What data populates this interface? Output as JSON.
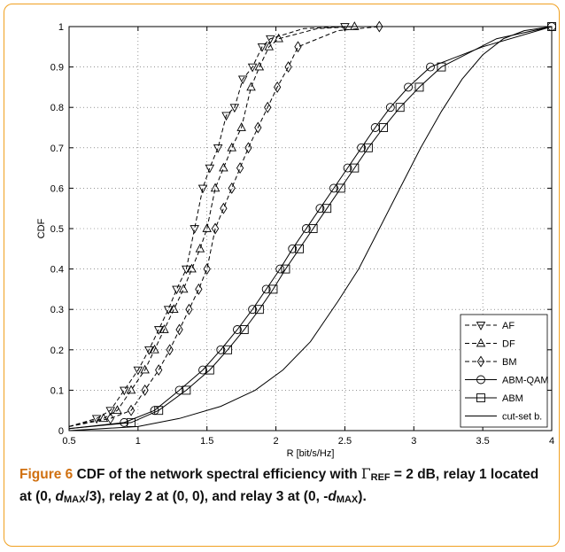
{
  "caption": {
    "lead": "Figure 6",
    "p1": " CDF of the network spectral efficiency with ",
    "gamma": "Γ",
    "gamma_sub": "REF",
    "p2": " = 2 dB, relay 1 located at (0, ",
    "d1": "d",
    "d1_sub": "MAX",
    "p3": "/3), relay 2 at (0, 0), and relay 3 at (0, -",
    "d2": "d",
    "d2_sub": "MAX",
    "p4": ")."
  },
  "chart_data": {
    "type": "line",
    "xlabel": "R [bit/s/Hz]",
    "ylabel": "CDF",
    "xlim": [
      0.5,
      4
    ],
    "ylim": [
      0,
      1
    ],
    "xticks": [
      "0.5",
      "1",
      "1.5",
      "2",
      "2.5",
      "3",
      "3.5",
      "4"
    ],
    "yticks": [
      "0",
      "0.1",
      "0.2",
      "0.3",
      "0.4",
      "0.5",
      "0.6",
      "0.7",
      "0.8",
      "0.9",
      "1"
    ],
    "grid": true,
    "legend_position": "bottom-right",
    "series": [
      {
        "name": "AF",
        "style": "dashed",
        "marker": "triangle-down",
        "x": [
          0.5,
          0.7,
          0.8,
          0.9,
          1.0,
          1.08,
          1.15,
          1.22,
          1.28,
          1.35,
          1.41,
          1.47,
          1.52,
          1.58,
          1.64,
          1.7,
          1.76,
          1.83,
          1.9,
          1.96,
          2.2,
          2.5
        ],
        "y": [
          0.01,
          0.03,
          0.05,
          0.1,
          0.15,
          0.2,
          0.25,
          0.3,
          0.35,
          0.4,
          0.5,
          0.6,
          0.65,
          0.7,
          0.78,
          0.8,
          0.87,
          0.9,
          0.95,
          0.97,
          0.995,
          1.0
        ]
      },
      {
        "name": "DF",
        "style": "dashed",
        "marker": "triangle-up",
        "x": [
          0.5,
          0.75,
          0.85,
          0.95,
          1.05,
          1.12,
          1.19,
          1.26,
          1.33,
          1.39,
          1.45,
          1.5,
          1.56,
          1.62,
          1.68,
          1.75,
          1.82,
          1.88,
          1.95,
          2.02,
          2.3,
          2.57
        ],
        "y": [
          0.01,
          0.03,
          0.05,
          0.1,
          0.15,
          0.2,
          0.25,
          0.3,
          0.35,
          0.4,
          0.45,
          0.5,
          0.6,
          0.65,
          0.7,
          0.75,
          0.85,
          0.9,
          0.95,
          0.97,
          0.995,
          1.0
        ]
      },
      {
        "name": "BM",
        "style": "dashed",
        "marker": "diamond",
        "x": [
          0.5,
          0.8,
          0.95,
          1.05,
          1.15,
          1.23,
          1.3,
          1.37,
          1.44,
          1.5,
          1.56,
          1.62,
          1.68,
          1.74,
          1.8,
          1.87,
          1.94,
          2.01,
          2.09,
          2.16,
          2.45,
          2.75
        ],
        "y": [
          0.01,
          0.03,
          0.05,
          0.1,
          0.15,
          0.2,
          0.25,
          0.3,
          0.35,
          0.4,
          0.5,
          0.55,
          0.6,
          0.65,
          0.7,
          0.75,
          0.8,
          0.85,
          0.9,
          0.95,
          0.99,
          1.0
        ]
      },
      {
        "name": "ABM-QAM",
        "style": "solid",
        "marker": "circle",
        "x": [
          0.5,
          0.9,
          1.12,
          1.3,
          1.47,
          1.6,
          1.72,
          1.83,
          1.93,
          2.03,
          2.12,
          2.22,
          2.32,
          2.42,
          2.52,
          2.62,
          2.72,
          2.83,
          2.96,
          3.12,
          3.5,
          4.0
        ],
        "y": [
          0.005,
          0.02,
          0.05,
          0.1,
          0.15,
          0.2,
          0.25,
          0.3,
          0.35,
          0.4,
          0.45,
          0.5,
          0.55,
          0.6,
          0.65,
          0.7,
          0.75,
          0.8,
          0.85,
          0.9,
          0.95,
          1.0
        ]
      },
      {
        "name": "ABM",
        "style": "solid",
        "marker": "square",
        "x": [
          0.5,
          0.95,
          1.15,
          1.35,
          1.52,
          1.65,
          1.77,
          1.88,
          1.98,
          2.07,
          2.17,
          2.27,
          2.37,
          2.47,
          2.57,
          2.67,
          2.78,
          2.9,
          3.04,
          3.2,
          3.6,
          4.0
        ],
        "y": [
          0.005,
          0.02,
          0.05,
          0.1,
          0.15,
          0.2,
          0.25,
          0.3,
          0.35,
          0.4,
          0.45,
          0.5,
          0.55,
          0.6,
          0.65,
          0.7,
          0.75,
          0.8,
          0.85,
          0.9,
          0.97,
          1.0
        ]
      },
      {
        "name": "cut-set b.",
        "style": "solid",
        "marker": "none",
        "x": [
          0.5,
          1.0,
          1.3,
          1.6,
          1.85,
          2.05,
          2.25,
          2.45,
          2.6,
          2.75,
          2.9,
          3.05,
          3.2,
          3.35,
          3.5,
          3.65,
          3.8,
          4.0
        ],
        "y": [
          0.0,
          0.01,
          0.03,
          0.06,
          0.1,
          0.15,
          0.22,
          0.32,
          0.4,
          0.5,
          0.6,
          0.7,
          0.79,
          0.87,
          0.93,
          0.97,
          0.99,
          1.0
        ]
      }
    ]
  }
}
